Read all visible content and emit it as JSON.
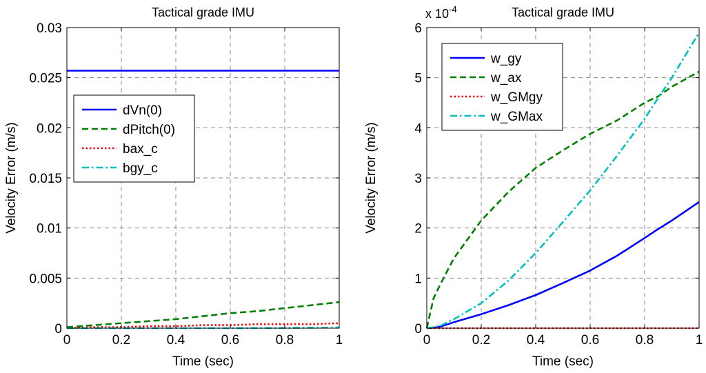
{
  "chart_data": [
    {
      "type": "line",
      "title": "Tactical grade IMU",
      "xlabel": "Time (sec)",
      "ylabel": "Velocity Error (m/s)",
      "xlim": [
        0,
        1
      ],
      "ylim": [
        0,
        0.03
      ],
      "xticks": [
        "0",
        "0.2",
        "0.4",
        "0.6",
        "0.8",
        "1"
      ],
      "yticks": [
        "0",
        "0.005",
        "0.01",
        "0.015",
        "0.02",
        "0.025",
        "0.03"
      ],
      "grid": true,
      "legend_position": "upper-left",
      "x": [
        0,
        0.1,
        0.2,
        0.3,
        0.4,
        0.5,
        0.6,
        0.7,
        0.8,
        0.9,
        1.0
      ],
      "series": [
        {
          "name": "dVn(0)",
          "color": "#0000ff",
          "dash": "solid",
          "values": [
            0.0257,
            0.0257,
            0.0257,
            0.0257,
            0.0257,
            0.0257,
            0.0257,
            0.0257,
            0.0257,
            0.0257,
            0.0257
          ]
        },
        {
          "name": "dPitch(0)",
          "color": "#008000",
          "dash": "dashed",
          "values": [
            0.0001,
            0.0003,
            0.0005,
            0.0007,
            0.0009,
            0.0012,
            0.0015,
            0.0017,
            0.002,
            0.0023,
            0.0026
          ]
        },
        {
          "name": "bax_c",
          "color": "#ff0000",
          "dash": "dotted",
          "values": [
            0.0,
            0.0001,
            0.0001,
            0.0002,
            0.0002,
            0.0003,
            0.0003,
            0.0004,
            0.0004,
            0.0004,
            0.0005
          ]
        },
        {
          "name": "bgy_c",
          "color": "#00bfbf",
          "dash": "dashdot",
          "values": [
            0.0,
            0.0,
            0.0,
            0.0,
            0.0,
            0.0,
            0.0,
            1e-05,
            2e-05,
            4e-05,
            6e-05
          ]
        }
      ]
    },
    {
      "type": "line",
      "title": "Tactical grade IMU",
      "xlabel": "Time (sec)",
      "ylabel": "Velocity Error (m/s)",
      "scale_label": "x 10",
      "scale_exponent": "-4",
      "xlim": [
        0,
        1
      ],
      "ylim": [
        0,
        6
      ],
      "xticks": [
        "0",
        "0.2",
        "0.4",
        "0.6",
        "0.8",
        "1"
      ],
      "yticks": [
        "0",
        "1",
        "2",
        "3",
        "4",
        "5",
        "6"
      ],
      "grid": true,
      "legend_position": "upper-left",
      "x": [
        0,
        0.025,
        0.05,
        0.1,
        0.2,
        0.3,
        0.4,
        0.5,
        0.6,
        0.7,
        0.8,
        0.85,
        0.9,
        1.0
      ],
      "series": [
        {
          "name": "w_gy",
          "color": "#0000ff",
          "dash": "solid",
          "values": [
            0,
            0.01,
            0.03,
            0.12,
            0.28,
            0.46,
            0.66,
            0.9,
            1.15,
            1.45,
            1.8,
            1.98,
            2.15,
            2.52
          ]
        },
        {
          "name": "w_ax",
          "color": "#008000",
          "dash": "dashed",
          "values": [
            0,
            0.6,
            0.88,
            1.4,
            2.15,
            2.72,
            3.2,
            3.55,
            3.88,
            4.15,
            4.5,
            4.63,
            4.82,
            5.12
          ]
        },
        {
          "name": "w_GMgy",
          "color": "#ff0000",
          "dash": "dotted",
          "values": [
            0,
            0,
            0,
            0,
            0,
            0,
            0,
            0,
            0,
            0,
            0,
            0,
            0,
            0
          ]
        },
        {
          "name": "w_GMax",
          "color": "#00bfbf",
          "dash": "dashdot",
          "values": [
            0,
            0.02,
            0.05,
            0.18,
            0.5,
            0.95,
            1.5,
            2.12,
            2.75,
            3.45,
            4.18,
            4.6,
            5.0,
            5.9
          ]
        }
      ]
    }
  ]
}
